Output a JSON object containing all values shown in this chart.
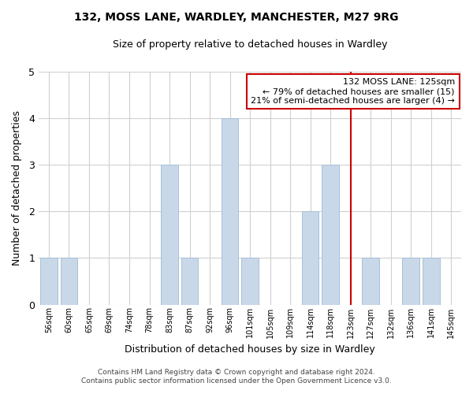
{
  "title": "132, MOSS LANE, WARDLEY, MANCHESTER, M27 9RG",
  "subtitle": "Size of property relative to detached houses in Wardley",
  "xlabel": "Distribution of detached houses by size in Wardley",
  "ylabel": "Number of detached properties",
  "bar_labels": [
    "56sqm",
    "60sqm",
    "65sqm",
    "69sqm",
    "74sqm",
    "78sqm",
    "83sqm",
    "87sqm",
    "92sqm",
    "96sqm",
    "101sqm",
    "105sqm",
    "109sqm",
    "114sqm",
    "118sqm",
    "123sqm",
    "127sqm",
    "132sqm",
    "136sqm",
    "141sqm",
    "145sqm"
  ],
  "bar_values": [
    1,
    1,
    0,
    0,
    0,
    0,
    3,
    1,
    0,
    4,
    1,
    0,
    0,
    2,
    3,
    0,
    1,
    0,
    1,
    1,
    0
  ],
  "bar_color": "#c8d8e8",
  "bar_edge_color": "#a8c0d8",
  "vline_x": 15,
  "vline_color": "#cc0000",
  "annotation_title": "132 MOSS LANE: 125sqm",
  "annotation_line1": "← 79% of detached houses are smaller (15)",
  "annotation_line2": "21% of semi-detached houses are larger (4) →",
  "annotation_box_color": "#cc0000",
  "ylim": [
    0,
    5
  ],
  "yticks": [
    0,
    1,
    2,
    3,
    4,
    5
  ],
  "footer1": "Contains HM Land Registry data © Crown copyright and database right 2024.",
  "footer2": "Contains public sector information licensed under the Open Government Licence v3.0.",
  "bg_color": "#ffffff",
  "grid_color": "#d0d0d0"
}
